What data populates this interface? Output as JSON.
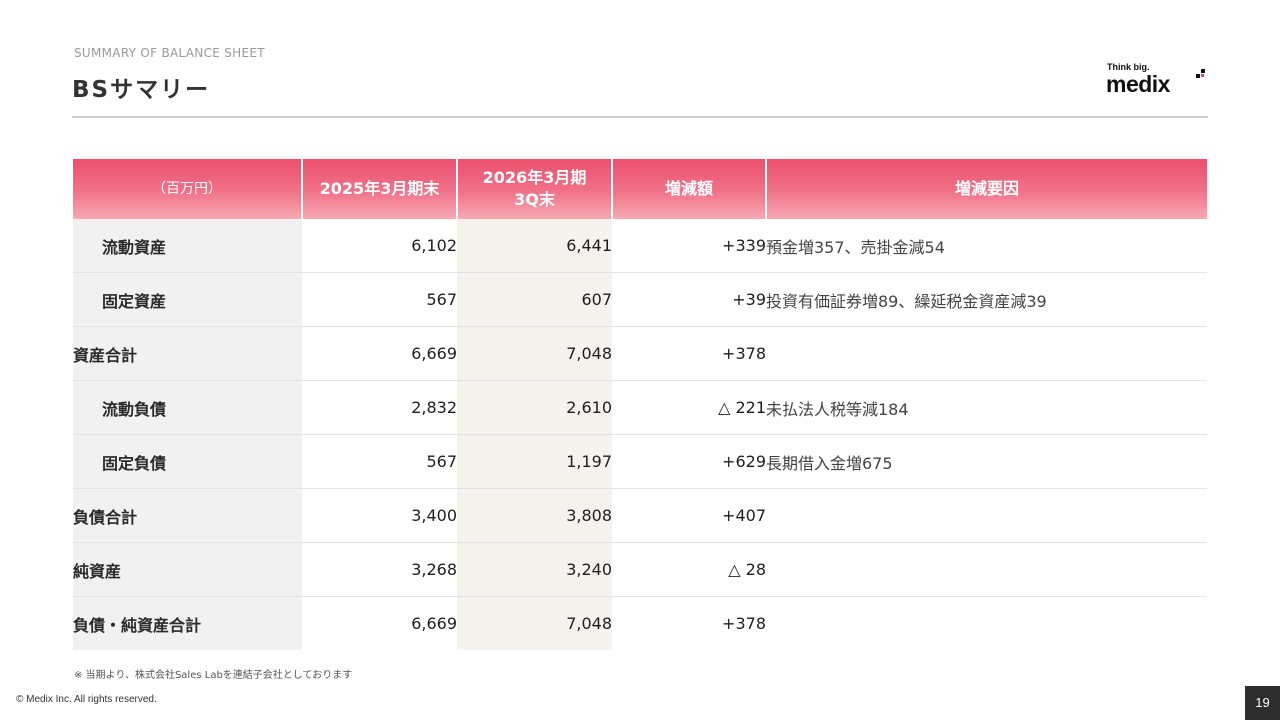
{
  "header": {
    "subtitle": "SUMMARY OF BALANCE SHEET",
    "title": "BSサマリー"
  },
  "logo": {
    "tagline": "Think big.",
    "wordmark": "medix",
    "accent_color": "#111111"
  },
  "table": {
    "headers": {
      "unit": "（百万円）",
      "prev": "2025年3月期末",
      "curr_line1": "2026年3月期",
      "curr_line2": "3Q末",
      "diff": "増減額",
      "reason": "増減要因"
    },
    "rows": [
      {
        "label": "流動資産",
        "prev": "6,102",
        "curr": "6,441",
        "diff": "+339",
        "reason": "預金増357、売掛金減54"
      },
      {
        "label": "固定資産",
        "prev": "567",
        "curr": "607",
        "diff": "+39",
        "reason": "投資有価証券増89、繰延税金資産減39"
      },
      {
        "label": "資産合計",
        "prev": "6,669",
        "curr": "7,048",
        "diff": "+378",
        "reason": ""
      },
      {
        "label": "流動負債",
        "prev": "2,832",
        "curr": "2,610",
        "diff": "△ 221",
        "reason": "未払法人税等減184"
      },
      {
        "label": "固定負債",
        "prev": "567",
        "curr": "1,197",
        "diff": "+629",
        "reason": "長期借入金増675"
      },
      {
        "label": "負債合計",
        "prev": "3,400",
        "curr": "3,808",
        "diff": "+407",
        "reason": ""
      },
      {
        "label": "純資産",
        "prev": "3,268",
        "curr": "3,240",
        "diff": "△ 28",
        "reason": ""
      },
      {
        "label": "負債・純資産合計",
        "prev": "6,669",
        "curr": "7,048",
        "diff": "+378",
        "reason": ""
      }
    ]
  },
  "colors": {
    "header_gradient_top": "#eb4f6c",
    "header_gradient_bottom": "#f7a9b3",
    "label_column_bg": "#f1f1f1",
    "current_column_bg": "#f6f3ef"
  },
  "footer": {
    "note": "※ 当期より、株式会社Sales Labを連結子会社としております",
    "copyright": "© Medix Inc. All rights reserved.",
    "page_number": "19"
  }
}
